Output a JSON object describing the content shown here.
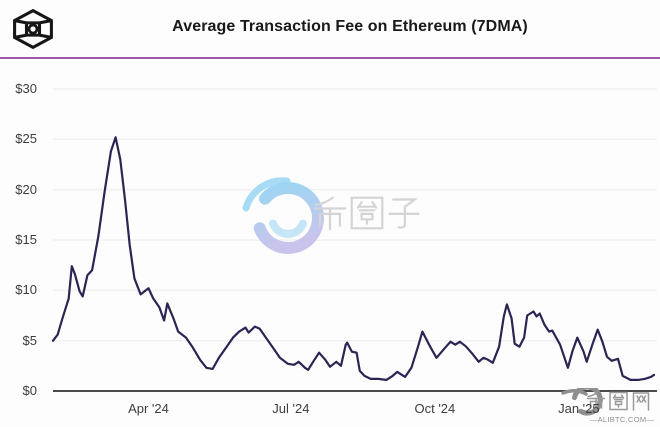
{
  "header": {
    "title": "Average Transaction Fee on Ethereum (7DMA)"
  },
  "watermarks": {
    "center": {
      "text": "币圈子"
    },
    "corner": {
      "text": "币圈网",
      "subtext": "—ALIBTC.COM—"
    }
  },
  "colors": {
    "line": "#2A2553",
    "accent_rule": "#A058A8",
    "grid": "#ECECEC",
    "axis": "#4A4A4A",
    "tick_text": "#3D3D3D",
    "title_text": "#191919",
    "logo_black": "#161616",
    "watermark_gray": "#9A9A9A",
    "watermark_blue": "#9BD6F2",
    "watermark_lavender": "#C9C4EC"
  },
  "chart_data": {
    "type": "line",
    "title": "Average Transaction Fee on Ethereum (7DMA)",
    "unit": "USD",
    "ylim": [
      0,
      30
    ],
    "y_ticks": [
      "$30",
      "$25",
      "$20",
      "$15",
      "$10",
      "$5",
      "$0"
    ],
    "y_tick_values": [
      30,
      25,
      20,
      15,
      10,
      5,
      0
    ],
    "x_ticks": [
      "Apr '24",
      "Jul '24",
      "Oct '24",
      "Jan '25"
    ],
    "x_tick_dates": [
      "2024-04-01",
      "2024-07-01",
      "2024-10-01",
      "2025-01-01"
    ],
    "x_range": [
      "2024-01-31",
      "2025-02-18"
    ],
    "grid": "horizontal",
    "legend": "none",
    "series": [
      {
        "name": "Average transaction fee, 7-day moving average (USD)",
        "points": [
          [
            "2024-01-31",
            5.0
          ],
          [
            "2024-02-03",
            5.6
          ],
          [
            "2024-02-06",
            7.2
          ],
          [
            "2024-02-10",
            9.2
          ],
          [
            "2024-02-12",
            12.4
          ],
          [
            "2024-02-14",
            11.6
          ],
          [
            "2024-02-17",
            9.9
          ],
          [
            "2024-02-19",
            9.4
          ],
          [
            "2024-02-22",
            11.5
          ],
          [
            "2024-02-25",
            12.0
          ],
          [
            "2024-02-29",
            15.4
          ],
          [
            "2024-03-04",
            19.8
          ],
          [
            "2024-03-08",
            23.8
          ],
          [
            "2024-03-11",
            25.2
          ],
          [
            "2024-03-14",
            23.0
          ],
          [
            "2024-03-17",
            19.0
          ],
          [
            "2024-03-20",
            14.5
          ],
          [
            "2024-03-23",
            11.2
          ],
          [
            "2024-03-27",
            9.6
          ],
          [
            "2024-04-01",
            10.2
          ],
          [
            "2024-04-04",
            9.2
          ],
          [
            "2024-04-08",
            8.3
          ],
          [
            "2024-04-11",
            7.0
          ],
          [
            "2024-04-13",
            8.7
          ],
          [
            "2024-04-17",
            7.2
          ],
          [
            "2024-04-20",
            5.9
          ],
          [
            "2024-04-25",
            5.3
          ],
          [
            "2024-04-29",
            4.4
          ],
          [
            "2024-05-04",
            3.1
          ],
          [
            "2024-05-08",
            2.3
          ],
          [
            "2024-05-12",
            2.2
          ],
          [
            "2024-05-16",
            3.3
          ],
          [
            "2024-05-21",
            4.4
          ],
          [
            "2024-05-25",
            5.3
          ],
          [
            "2024-05-29",
            5.9
          ],
          [
            "2024-06-02",
            6.3
          ],
          [
            "2024-06-04",
            5.8
          ],
          [
            "2024-06-08",
            6.4
          ],
          [
            "2024-06-11",
            6.2
          ],
          [
            "2024-06-15",
            5.3
          ],
          [
            "2024-06-20",
            4.2
          ],
          [
            "2024-06-24",
            3.3
          ],
          [
            "2024-06-29",
            2.7
          ],
          [
            "2024-07-03",
            2.6
          ],
          [
            "2024-07-06",
            2.9
          ],
          [
            "2024-07-10",
            2.3
          ],
          [
            "2024-07-12",
            2.1
          ],
          [
            "2024-07-16",
            3.1
          ],
          [
            "2024-07-19",
            3.8
          ],
          [
            "2024-07-23",
            3.1
          ],
          [
            "2024-07-26",
            2.4
          ],
          [
            "2024-07-30",
            2.9
          ],
          [
            "2024-08-02",
            2.5
          ],
          [
            "2024-08-05",
            4.6
          ],
          [
            "2024-08-06",
            4.8
          ],
          [
            "2024-08-09",
            3.9
          ],
          [
            "2024-08-12",
            3.8
          ],
          [
            "2024-08-14",
            2.0
          ],
          [
            "2024-08-17",
            1.5
          ],
          [
            "2024-08-21",
            1.2
          ],
          [
            "2024-08-26",
            1.2
          ],
          [
            "2024-08-31",
            1.1
          ],
          [
            "2024-09-04",
            1.5
          ],
          [
            "2024-09-07",
            1.9
          ],
          [
            "2024-09-12",
            1.4
          ],
          [
            "2024-09-16",
            2.3
          ],
          [
            "2024-09-20",
            4.3
          ],
          [
            "2024-09-23",
            5.9
          ],
          [
            "2024-09-28",
            4.4
          ],
          [
            "2024-10-02",
            3.3
          ],
          [
            "2024-10-07",
            4.2
          ],
          [
            "2024-10-11",
            4.9
          ],
          [
            "2024-10-14",
            4.6
          ],
          [
            "2024-10-17",
            4.9
          ],
          [
            "2024-10-21",
            4.4
          ],
          [
            "2024-10-25",
            3.7
          ],
          [
            "2024-10-29",
            2.9
          ],
          [
            "2024-11-01",
            3.3
          ],
          [
            "2024-11-04",
            3.1
          ],
          [
            "2024-11-07",
            2.8
          ],
          [
            "2024-11-11",
            4.4
          ],
          [
            "2024-11-14",
            7.4
          ],
          [
            "2024-11-16",
            8.6
          ],
          [
            "2024-11-19",
            7.2
          ],
          [
            "2024-11-21",
            4.7
          ],
          [
            "2024-11-24",
            4.4
          ],
          [
            "2024-11-27",
            5.3
          ],
          [
            "2024-11-29",
            7.5
          ],
          [
            "2024-12-03",
            7.9
          ],
          [
            "2024-12-05",
            7.4
          ],
          [
            "2024-12-07",
            7.7
          ],
          [
            "2024-12-10",
            6.6
          ],
          [
            "2024-12-13",
            5.9
          ],
          [
            "2024-12-15",
            6.0
          ],
          [
            "2024-12-20",
            4.6
          ],
          [
            "2024-12-25",
            2.3
          ],
          [
            "2024-12-28",
            4.0
          ],
          [
            "2024-12-31",
            5.3
          ],
          [
            "2025-01-04",
            3.9
          ],
          [
            "2025-01-06",
            2.9
          ],
          [
            "2025-01-10",
            4.8
          ],
          [
            "2025-01-13",
            6.1
          ],
          [
            "2025-01-16",
            4.9
          ],
          [
            "2025-01-19",
            3.4
          ],
          [
            "2025-01-22",
            3.0
          ],
          [
            "2025-01-26",
            3.2
          ],
          [
            "2025-01-29",
            1.5
          ],
          [
            "2025-02-03",
            1.1
          ],
          [
            "2025-02-08",
            1.1
          ],
          [
            "2025-02-12",
            1.2
          ],
          [
            "2025-02-16",
            1.4
          ],
          [
            "2025-02-18",
            1.6
          ]
        ]
      }
    ]
  }
}
